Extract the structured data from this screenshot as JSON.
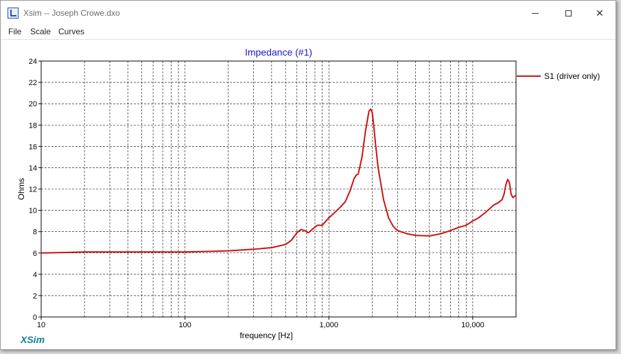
{
  "window": {
    "title": "Xsim -- Joseph Crowe.dxo",
    "app_icon": "xsim-app-icon",
    "controls": [
      "minimize",
      "maximize",
      "close"
    ]
  },
  "menu": {
    "items": [
      "File",
      "Scale",
      "Curves"
    ]
  },
  "brand": "XSim",
  "colors": {
    "title": "#1a1acc",
    "series": "#cc1111",
    "brand": "#0f7e8f"
  },
  "chart_data": {
    "type": "line",
    "title": "Impedance (#1)",
    "xlabel": "frequency [Hz]",
    "ylabel": "Ohms",
    "xscale": "log",
    "xlim": [
      10,
      20000
    ],
    "ylim": [
      0,
      24
    ],
    "x_tick_labels": [
      "10",
      "100",
      "1,000",
      "10,000"
    ],
    "x_ticks": [
      10,
      100,
      1000,
      10000
    ],
    "y_ticks": [
      0,
      2,
      4,
      6,
      8,
      10,
      12,
      14,
      16,
      18,
      20,
      22,
      24
    ],
    "grid": true,
    "legend_position": "right",
    "series": [
      {
        "name": "S1 (driver only)",
        "color": "#cc1111",
        "x": [
          10,
          15,
          20,
          30,
          50,
          70,
          100,
          150,
          200,
          300,
          400,
          500,
          550,
          600,
          640,
          680,
          720,
          780,
          830,
          900,
          1000,
          1100,
          1200,
          1300,
          1400,
          1500,
          1550,
          1600,
          1700,
          1800,
          1900,
          1950,
          2000,
          2050,
          2100,
          2200,
          2400,
          2600,
          2800,
          3000,
          3500,
          4000,
          5000,
          6000,
          7000,
          8000,
          9000,
          10000,
          11000,
          12000,
          13000,
          14000,
          15000,
          16000,
          16500,
          17000,
          17500,
          18000,
          18500,
          19000,
          20000
        ],
        "y": [
          6.0,
          6.05,
          6.1,
          6.1,
          6.1,
          6.1,
          6.1,
          6.15,
          6.2,
          6.35,
          6.5,
          6.8,
          7.2,
          7.9,
          8.2,
          8.1,
          7.9,
          8.3,
          8.6,
          8.6,
          9.3,
          9.8,
          10.3,
          10.8,
          11.8,
          13.0,
          13.3,
          13.4,
          15.0,
          17.5,
          19.3,
          19.5,
          19.2,
          18.0,
          16.5,
          14.0,
          11.0,
          9.3,
          8.5,
          8.1,
          7.8,
          7.65,
          7.6,
          7.8,
          8.1,
          8.4,
          8.6,
          9.0,
          9.3,
          9.7,
          10.1,
          10.5,
          10.7,
          11.0,
          11.5,
          12.4,
          12.9,
          12.6,
          11.5,
          11.2,
          11.4
        ]
      }
    ]
  }
}
